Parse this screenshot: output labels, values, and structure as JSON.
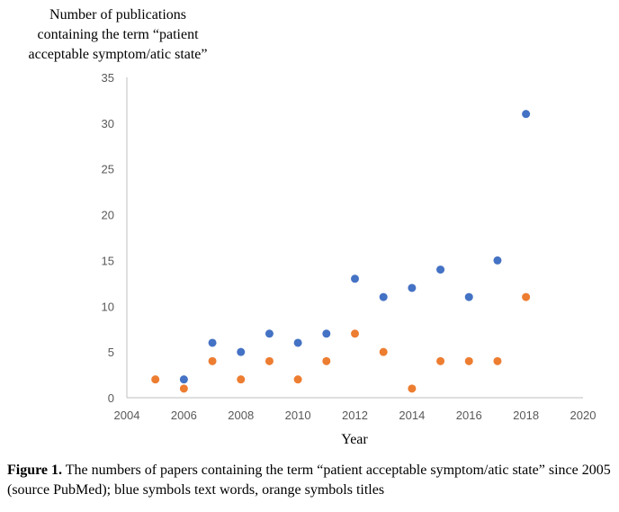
{
  "chart_data": {
    "type": "scatter",
    "title": "Number of publications containing the term “patient acceptable symptom/atic state”",
    "title_lines": [
      "Number of publications",
      "containing the term  “patient",
      "acceptable symptom/atic state”"
    ],
    "xlabel": "Year",
    "ylabel": "",
    "xlim": [
      2004,
      2020
    ],
    "ylim": [
      0,
      35
    ],
    "x_ticks": [
      2004,
      2006,
      2008,
      2010,
      2012,
      2014,
      2016,
      2018,
      2020
    ],
    "y_ticks": [
      0,
      5,
      10,
      15,
      20,
      25,
      30,
      35
    ],
    "grid": false,
    "legend": "none",
    "series": [
      {
        "color": "#4472C4",
        "x": [
          2006,
          2007,
          2008,
          2009,
          2010,
          2011,
          2012,
          2013,
          2014,
          2015,
          2016,
          2017,
          2018
        ],
        "y": [
          2,
          6,
          5,
          7,
          6,
          7,
          13,
          11,
          12,
          14,
          11,
          15,
          31
        ]
      },
      {
        "color": "#ED7D31",
        "x": [
          2005,
          2006,
          2007,
          2008,
          2009,
          2010,
          2011,
          2012,
          2013,
          2014,
          2015,
          2016,
          2017,
          2018
        ],
        "y": [
          2,
          1,
          4,
          2,
          4,
          2,
          4,
          7,
          5,
          1,
          4,
          4,
          4,
          11
        ]
      }
    ]
  },
  "caption": {
    "label": "Figure 1.",
    "text": " The numbers of papers containing the term “patient acceptable symptom/atic state” since 2005 (source PubMed); blue symbols text words, orange symbols titles"
  }
}
